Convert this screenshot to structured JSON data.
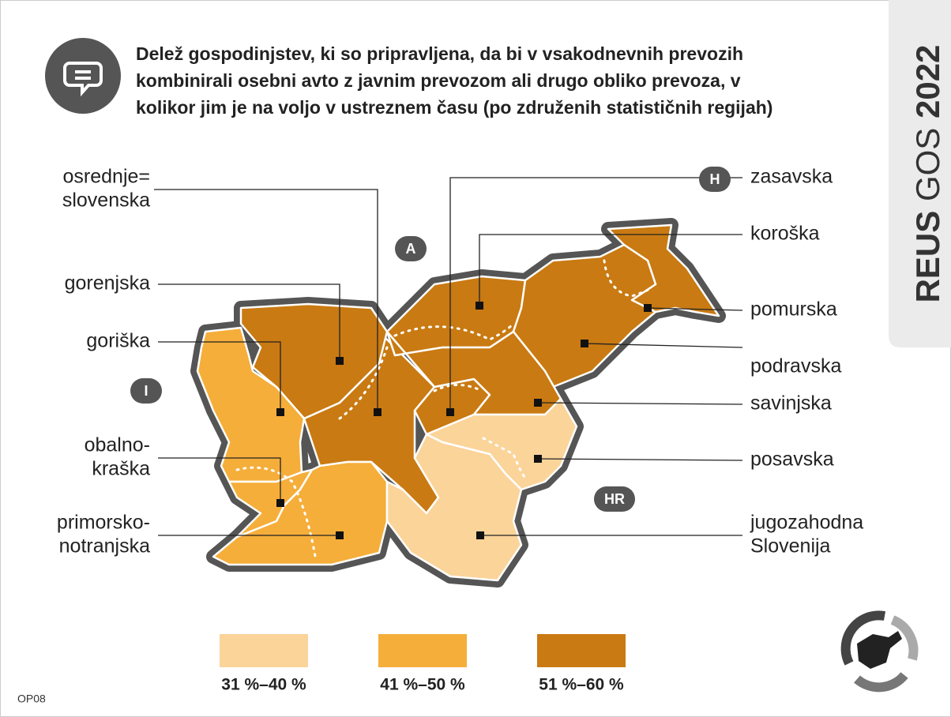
{
  "title_lines": [
    "Delež gospodinjstev, ki so pripravljena, da bi v vsakodnevnih prevozih",
    "kombinirali osebni avto z javnim prevozom ali drugo obliko prevoza, v",
    "kolikor jim je na voljo v ustreznem času (po združenih statističnih regijah)"
  ],
  "badge": [
    "REUS",
    "GOS",
    "2022"
  ],
  "regions": [
    {
      "label_lines": [
        "osrednje=",
        "slovenska"
      ],
      "color": "#c97a12"
    },
    {
      "label_lines": [
        "gorenjska"
      ],
      "color": "#c97a12"
    },
    {
      "label_lines": [
        "goriška"
      ],
      "color": "#f5ae3a"
    },
    {
      "label_lines": [
        "obalno-",
        "kraška"
      ],
      "color": "#f5ae3a"
    },
    {
      "label_lines": [
        "primorsko-",
        "notranjska"
      ],
      "color": "#f5ae3a"
    },
    {
      "label_lines": [
        "zasavska"
      ],
      "color": "#c97a12"
    },
    {
      "label_lines": [
        "koroška"
      ],
      "color": "#c97a12"
    },
    {
      "label_lines": [
        "pomurska"
      ],
      "color": "#c97a12"
    },
    {
      "label_lines": [
        "podravska"
      ],
      "color": "#c97a12"
    },
    {
      "label_lines": [
        "savinjska"
      ],
      "color": "#c97a12"
    },
    {
      "label_lines": [
        "posavska"
      ],
      "color": "#fbd49a"
    },
    {
      "label_lines": [
        "jugozahodna",
        "Slovenija"
      ],
      "color": "#fbd49a"
    }
  ],
  "countries": [
    "A",
    "H",
    "I",
    "HR"
  ],
  "legend": [
    {
      "label": "31 %–40 %",
      "color": "#fbd49a"
    },
    {
      "label": "41 %–50 %",
      "color": "#f5ae3a"
    },
    {
      "label": "51 %–60 %",
      "color": "#c97a12"
    }
  ],
  "code": "OP08"
}
